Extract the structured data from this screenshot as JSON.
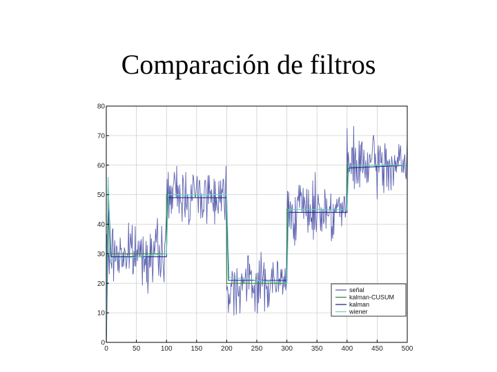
{
  "slide": {
    "title": "Comparación de filtros"
  },
  "colors": {
    "background": "#ffffff",
    "grid": "#cfcfcf",
    "axis": "#000000",
    "senal": "#5a5fae",
    "kalman_cusum": "#2f8f2f",
    "kalman": "#1f2a8c",
    "wiener": "#6fd3c4"
  },
  "chart_data": {
    "type": "line",
    "title": "",
    "xlabel": "",
    "ylabel": "",
    "xlim": [
      0,
      500
    ],
    "ylim": [
      0,
      80
    ],
    "xticks": [
      0,
      50,
      100,
      150,
      200,
      250,
      300,
      350,
      400,
      450,
      500
    ],
    "yticks": [
      0,
      10,
      20,
      30,
      40,
      50,
      60,
      70,
      80
    ],
    "grid": true,
    "legend_position": "bottom-right",
    "segments": [
      {
        "x_start": 0,
        "x_end": 100,
        "level": 30,
        "noise_amplitude": 6
      },
      {
        "x_start": 100,
        "x_end": 200,
        "level": 50,
        "noise_amplitude": 6
      },
      {
        "x_start": 200,
        "x_end": 300,
        "level": 20,
        "noise_amplitude": 6
      },
      {
        "x_start": 300,
        "x_end": 400,
        "level": 45,
        "noise_amplitude": 6
      },
      {
        "x_start": 400,
        "x_end": 500,
        "level": 60,
        "noise_amplitude": 6
      }
    ],
    "series": [
      {
        "name": "señal",
        "color_key": "senal",
        "kind": "noisy"
      },
      {
        "name": "kalman-CUSUM",
        "color_key": "kalman_cusum",
        "kind": "step",
        "points": [
          [
            0,
            0
          ],
          [
            3,
            55
          ],
          [
            6,
            30
          ],
          [
            100,
            30
          ],
          [
            100,
            50
          ],
          [
            200,
            50
          ],
          [
            200,
            20
          ],
          [
            300,
            20
          ],
          [
            300,
            45
          ],
          [
            400,
            45
          ],
          [
            400,
            60
          ],
          [
            500,
            60
          ]
        ]
      },
      {
        "name": "kalman",
        "color_key": "kalman",
        "kind": "step",
        "points": [
          [
            0,
            0
          ],
          [
            4,
            48
          ],
          [
            8,
            29
          ],
          [
            100,
            29
          ],
          [
            102,
            49
          ],
          [
            200,
            49
          ],
          [
            203,
            21
          ],
          [
            300,
            21
          ],
          [
            302,
            44
          ],
          [
            400,
            44
          ],
          [
            402,
            59
          ],
          [
            500,
            60
          ]
        ]
      },
      {
        "name": "wiener",
        "color_key": "wiener",
        "kind": "step",
        "points": [
          [
            0,
            0
          ],
          [
            3,
            56
          ],
          [
            7,
            28
          ],
          [
            100,
            30
          ],
          [
            103,
            50
          ],
          [
            200,
            50
          ],
          [
            204,
            22
          ],
          [
            300,
            20
          ],
          [
            303,
            45
          ],
          [
            400,
            45
          ],
          [
            403,
            60
          ],
          [
            500,
            60
          ]
        ]
      }
    ]
  }
}
